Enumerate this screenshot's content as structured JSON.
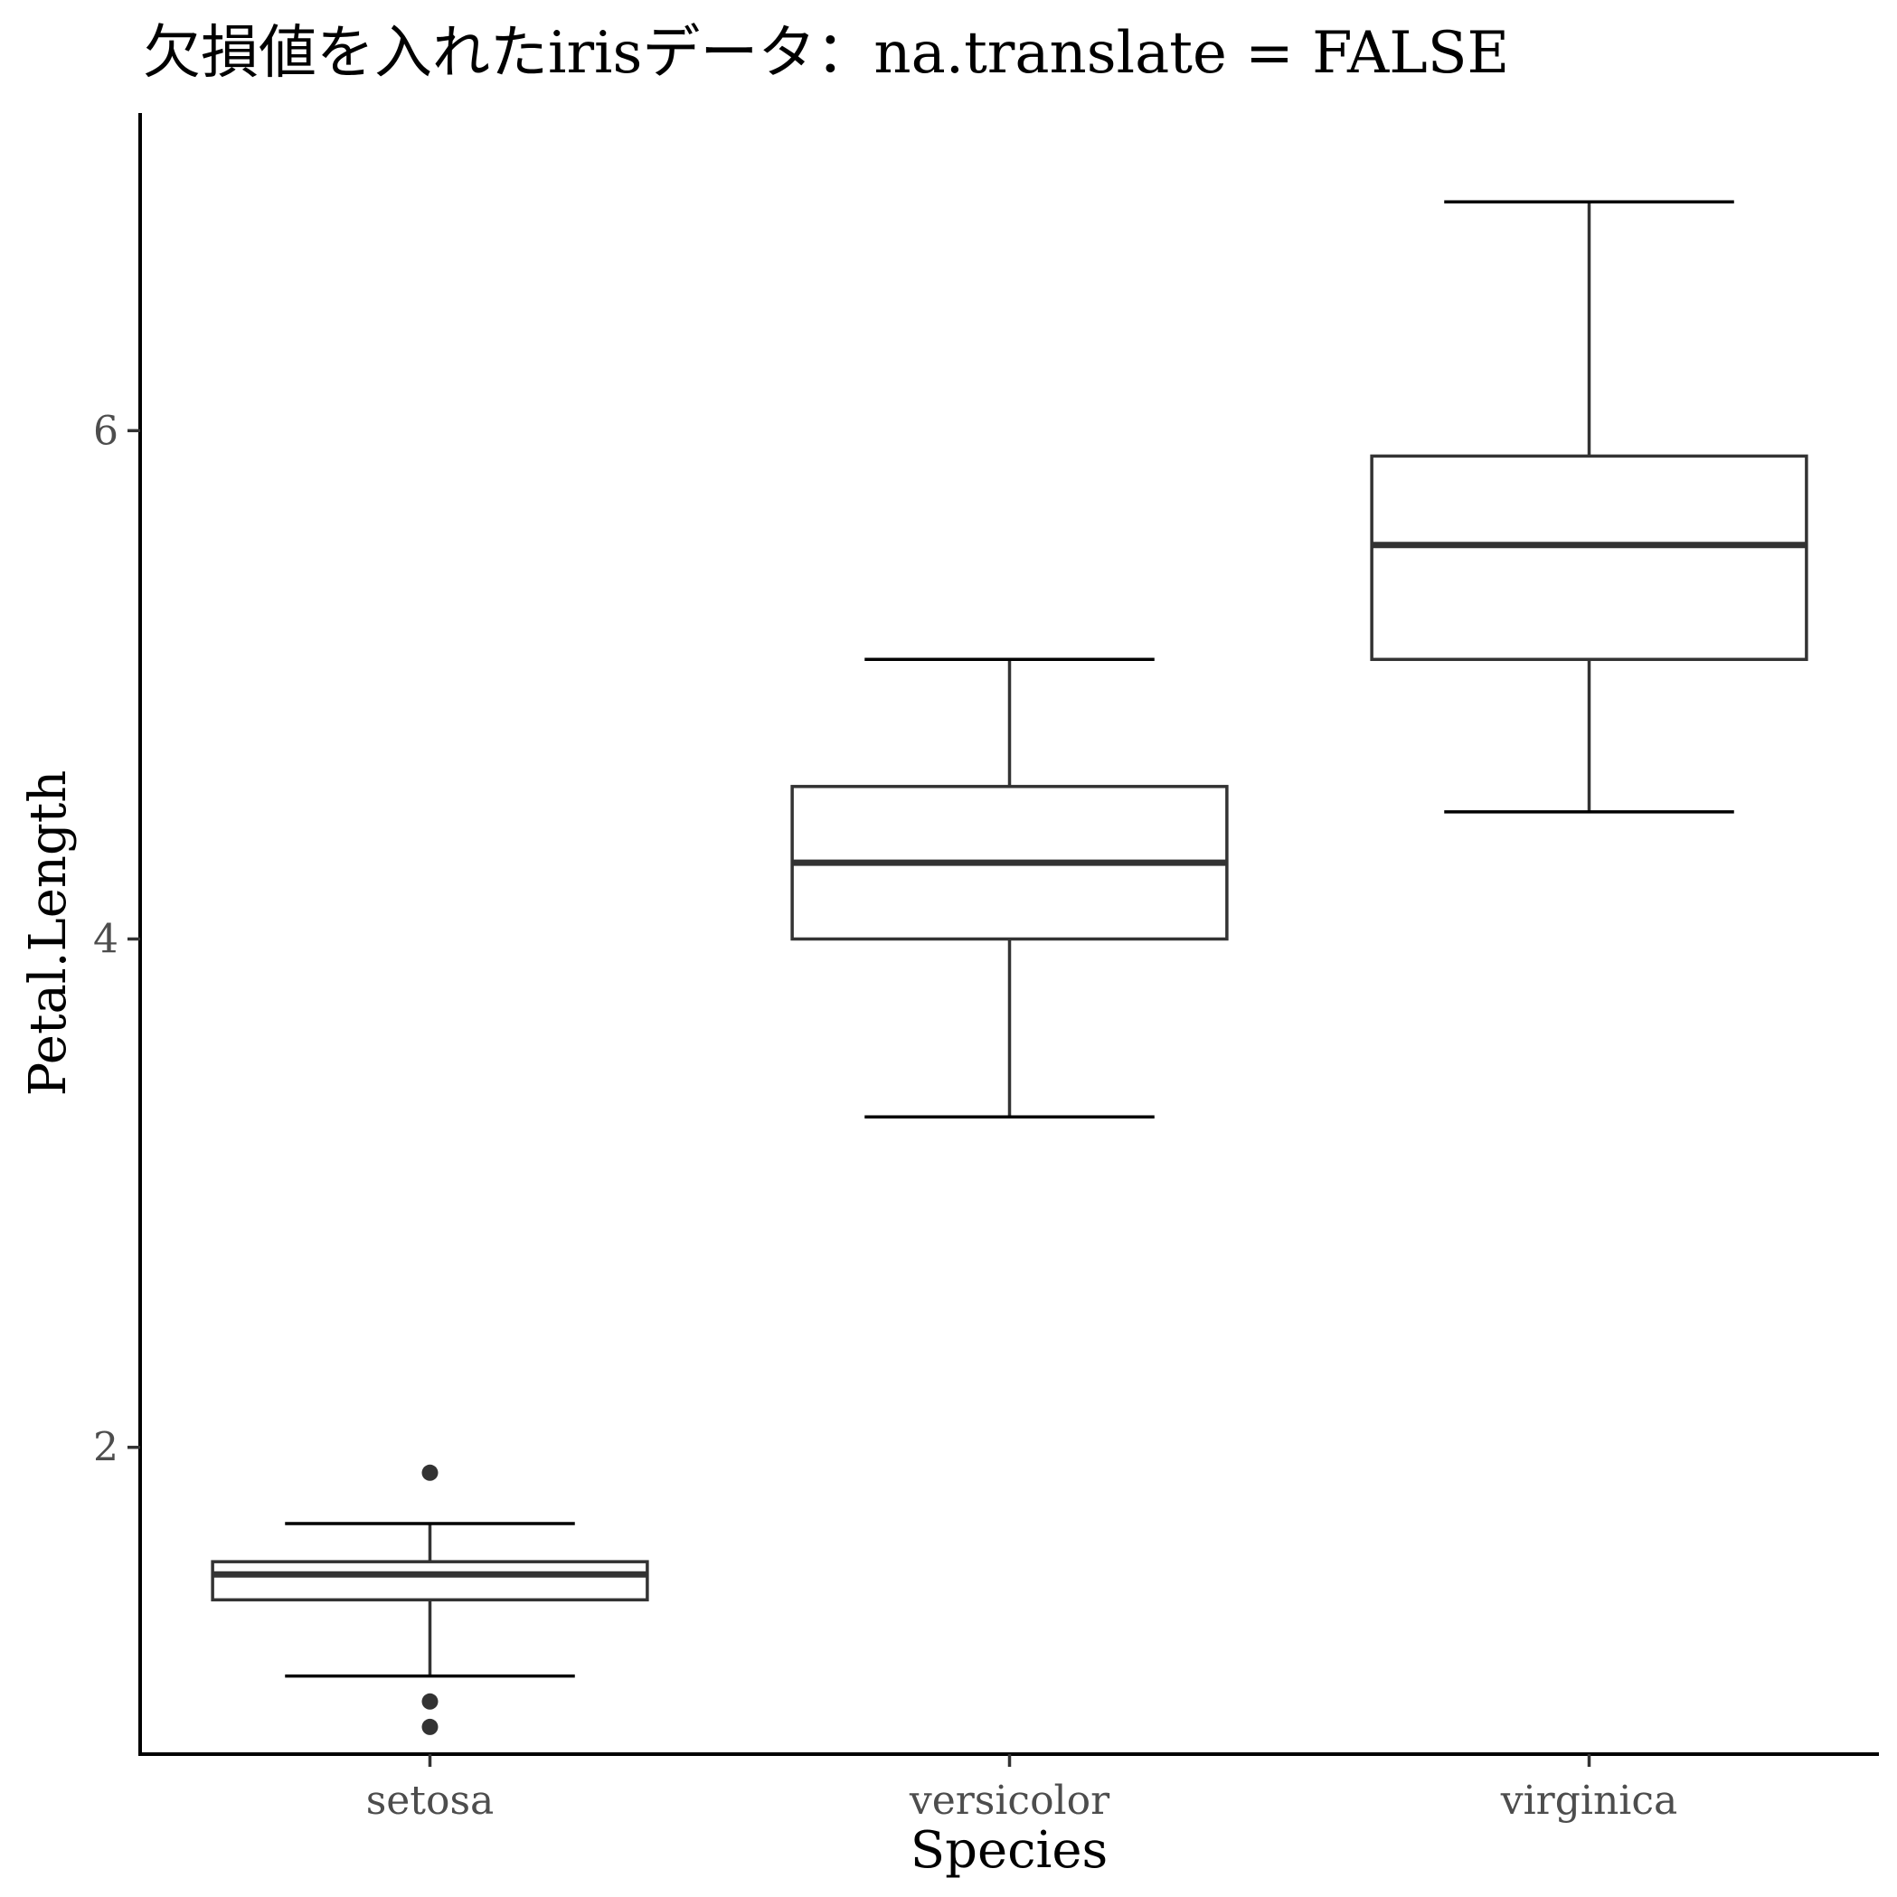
{
  "chart_data": {
    "type": "box",
    "title": "欠損値を入れたirisデータ：na.translate = FALSE",
    "xlabel": "Species",
    "ylabel": "Petal.Length",
    "categories": [
      "setosa",
      "versicolor",
      "virginica"
    ],
    "ylim": [
      0.75,
      7.25
    ],
    "yticks": [
      2,
      4,
      6
    ],
    "grid": false,
    "legend": "none",
    "boxes": [
      {
        "category": "setosa",
        "whisker_low": 1.1,
        "q1": 1.4,
        "median": 1.5,
        "q3": 1.55,
        "whisker_high": 1.7,
        "outliers": [
          1.0,
          0.9,
          1.9
        ]
      },
      {
        "category": "versicolor",
        "whisker_low": 3.3,
        "q1": 4.0,
        "median": 4.3,
        "q3": 4.6,
        "whisker_high": 5.1,
        "outliers": []
      },
      {
        "category": "virginica",
        "whisker_low": 4.5,
        "q1": 5.1,
        "median": 5.55,
        "q3": 5.9,
        "whisker_high": 6.9,
        "outliers": []
      }
    ],
    "colors": {
      "box_stroke": "#333333",
      "axis": "#000000",
      "tick_text": "#4d4d4d",
      "background": "#ffffff"
    }
  }
}
